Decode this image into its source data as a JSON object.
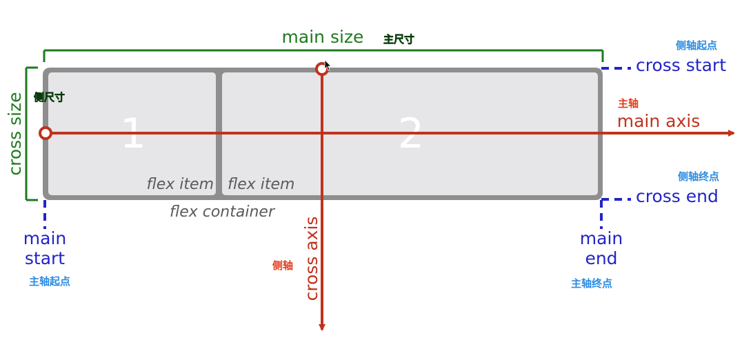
{
  "labels": {
    "main_size": "main size",
    "main_size_cn": "主尺寸",
    "cross_size": "cross size",
    "cross_size_cn": "侧尺寸",
    "cross_start": "cross start",
    "cross_start_cn": "侧轴起点",
    "cross_end": "cross end",
    "cross_end_cn": "侧轴终点",
    "main_axis": "main axis",
    "main_axis_cn": "主轴",
    "cross_axis": "cross axis",
    "cross_axis_cn": "侧轴",
    "main_start_line1": "main",
    "main_start_line2": "start",
    "main_start_cn": "主轴起点",
    "main_end_line1": "main",
    "main_end_line2": "end",
    "main_end_cn": "主轴终点",
    "flex_container": "flex container",
    "item1_label": "flex item",
    "item2_label": "flex item",
    "item1_number": "1",
    "item2_number": "2"
  },
  "colors": {
    "main_size": "#1e7a1e",
    "cross_markers": "#2323c8",
    "axes": "#c0321c",
    "container_border": "#8e8e8e",
    "item_fill": "#e6e6e8",
    "chinese_blue": "#2a8be0",
    "chinese_red": "#e23a1a",
    "chinese_green": "#22aa22"
  }
}
